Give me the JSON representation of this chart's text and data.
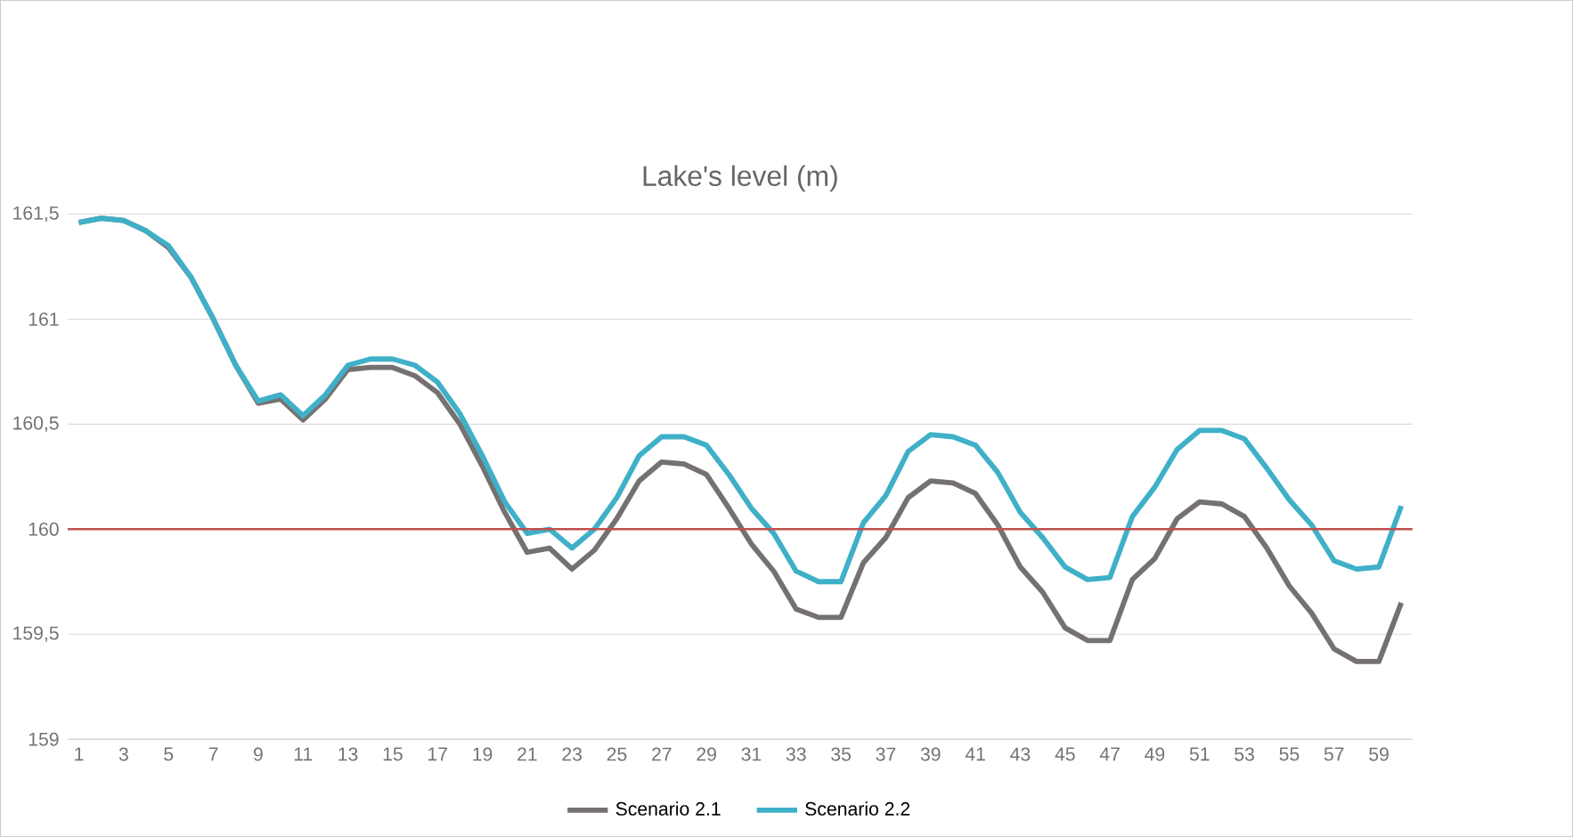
{
  "chart_data": {
    "type": "line",
    "title": "Lake's level (m)",
    "categories": [
      "1",
      null,
      "3",
      null,
      "5",
      null,
      "7",
      null,
      "9",
      null,
      "11",
      null,
      "13",
      null,
      "15",
      null,
      "17",
      null,
      "19",
      null,
      "21",
      null,
      "23",
      null,
      "25",
      null,
      "27",
      null,
      "29",
      null,
      "31",
      null,
      "33",
      null,
      "35",
      null,
      "37",
      null,
      "39",
      null,
      "41",
      null,
      "43",
      null,
      "45",
      null,
      "47",
      null,
      "49",
      null,
      "51",
      null,
      "53",
      null,
      "55",
      null,
      "57",
      null,
      "59",
      null
    ],
    "series": [
      {
        "name": "Scenario 2.1",
        "color": "#767171",
        "values": [
          161.46,
          161.48,
          161.47,
          161.42,
          161.34,
          161.2,
          161.0,
          160.78,
          160.6,
          160.62,
          160.52,
          160.62,
          160.76,
          160.77,
          160.77,
          160.73,
          160.65,
          160.5,
          160.3,
          160.08,
          159.89,
          159.91,
          159.81,
          159.9,
          160.05,
          160.23,
          160.32,
          160.31,
          160.26,
          160.1,
          159.93,
          159.8,
          159.62,
          159.58,
          159.58,
          159.84,
          159.96,
          160.15,
          160.23,
          160.22,
          160.17,
          160.02,
          159.82,
          159.7,
          159.53,
          159.47,
          159.47,
          159.76,
          159.86,
          160.05,
          160.13,
          160.12,
          160.06,
          159.91,
          159.73,
          159.6,
          159.43,
          159.37,
          159.37,
          159.65
        ]
      },
      {
        "name": "Scenario 2.2",
        "color": "#3fb0c8",
        "values": [
          161.46,
          161.48,
          161.47,
          161.42,
          161.35,
          161.2,
          161.0,
          160.78,
          160.61,
          160.64,
          160.54,
          160.64,
          160.78,
          160.81,
          160.81,
          160.78,
          160.7,
          160.55,
          160.35,
          160.13,
          159.98,
          160.0,
          159.91,
          160.0,
          160.15,
          160.35,
          160.44,
          160.44,
          160.4,
          160.26,
          160.1,
          159.98,
          159.8,
          159.75,
          159.75,
          160.03,
          160.16,
          160.37,
          160.45,
          160.44,
          160.4,
          160.27,
          160.08,
          159.96,
          159.82,
          159.76,
          159.77,
          160.06,
          160.2,
          160.38,
          160.47,
          160.47,
          160.43,
          160.29,
          160.14,
          160.02,
          159.85,
          159.81,
          159.82,
          160.11
        ]
      }
    ],
    "ylim": [
      159,
      161.5
    ],
    "yticks": [
      {
        "value": 159,
        "label": "159"
      },
      {
        "value": 159.5,
        "label": "159,5"
      },
      {
        "value": 160,
        "label": "160"
      },
      {
        "value": 160.5,
        "label": "160,5"
      },
      {
        "value": 161,
        "label": "161"
      },
      {
        "value": 161.5,
        "label": "161,5"
      }
    ],
    "ref_lines": [
      {
        "axis": "y",
        "value": 160,
        "color": "#c0504d"
      }
    ],
    "grid": "y",
    "legend": "bottom",
    "marker": "none",
    "line_style": "solid"
  }
}
